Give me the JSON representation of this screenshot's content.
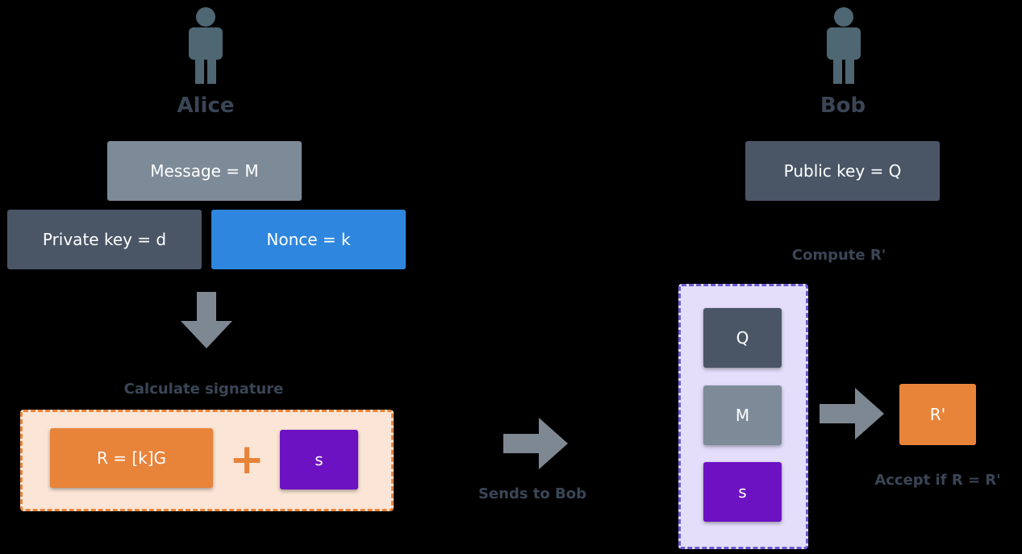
{
  "alice": {
    "name": "Alice",
    "message": "Message = M",
    "private_key": "Private key = d",
    "nonce": "Nonce = k",
    "calc_label": "Calculate signature",
    "r_value": "R = [k]G",
    "plus": "+",
    "s_value": "s"
  },
  "transfer": {
    "label": "Sends to Bob"
  },
  "bob": {
    "name": "Bob",
    "public_key": "Public key = Q",
    "compute_label": "Compute R'",
    "q": "Q",
    "m": "M",
    "s": "s",
    "r_prime": "R'",
    "accept_label": "Accept if R = R'"
  },
  "colors": {
    "slate_dark": "#4a5666",
    "slate_light": "#7d8a98",
    "blue": "#2e86de",
    "orange": "#e8833a",
    "purple": "#6c12c2",
    "arrow_gray": "#7e8892",
    "person": "#4f6673",
    "sig_bg": "#fbe5d6",
    "verify_bg": "#e4defb"
  }
}
